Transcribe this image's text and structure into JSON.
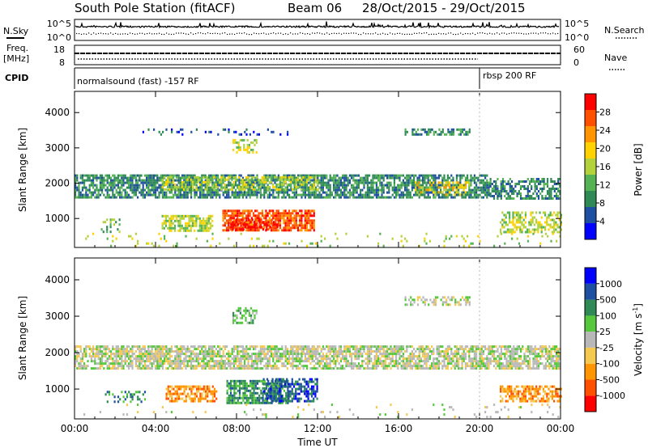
{
  "header": {
    "title": "South Pole Station (fitACF)",
    "beam": "Beam 06",
    "date_range": "28/Oct/2015 - 29/Oct/2015"
  },
  "nsky_panel": {
    "left_label": "N.Sky",
    "right_label": "N.Search",
    "left_ticks": [
      "10^5",
      "10^0"
    ],
    "right_ticks": [
      "10^5",
      "10^0"
    ]
  },
  "freq_panel": {
    "left_label_1": "Freq.",
    "left_label_2": "[MHz]",
    "left_ticks": [
      "18",
      "8"
    ],
    "right_ticks": [
      "60",
      "0"
    ],
    "right_label": "Nave"
  },
  "cpid_panel": {
    "label": "CPID",
    "segments": [
      {
        "name": "normalsound (fast) -157 RF",
        "start_hour": 0,
        "end_hour": 20
      },
      {
        "name": "rbsp 200 RF",
        "start_hour": 20,
        "end_hour": 24
      }
    ]
  },
  "colors": {
    "power_scale": [
      "#0000ff",
      "#1f4fa0",
      "#2f8a55",
      "#55b255",
      "#b4d23c",
      "#ffd200",
      "#ff9600",
      "#ff5000",
      "#ff0000"
    ],
    "velocity_scale": [
      "#ff0000",
      "#ff5000",
      "#ff9600",
      "#f5c850",
      "#b8b8b8",
      "#55c83c",
      "#2f8a55",
      "#1f4fa0",
      "#0000ff"
    ],
    "ground_scatter": "#b8b8b8"
  },
  "chart_data": [
    {
      "type": "heatmap",
      "panel": "power",
      "ylabel": "Slant Range [km]",
      "ylim": [
        180,
        4600
      ],
      "yticks": [
        "1000",
        "2000",
        "3000",
        "4000"
      ],
      "xlim_hours": [
        0,
        24
      ],
      "colorbar": {
        "label": "Power [dB]",
        "ticks": [
          "28",
          "24",
          "20",
          "16",
          "12",
          "8",
          "4"
        ],
        "range": [
          0,
          32
        ]
      },
      "bands": [
        {
          "x0": 0.0,
          "x1": 20.5,
          "y0": 1600,
          "y1": 2250,
          "level": 2,
          "density": 0.75
        },
        {
          "x0": 20.5,
          "x1": 24.0,
          "y0": 1600,
          "y1": 2150,
          "level": 2,
          "density": 0.6
        },
        {
          "x0": 4.3,
          "x1": 12.0,
          "y0": 1800,
          "y1": 2200,
          "level": 4,
          "density": 0.5
        },
        {
          "x0": 16.8,
          "x1": 19.5,
          "y0": 1700,
          "y1": 2050,
          "level": 5,
          "density": 0.4
        },
        {
          "x0": 7.3,
          "x1": 11.8,
          "y0": 650,
          "y1": 1250,
          "level": 7,
          "density": 0.8
        },
        {
          "x0": 7.6,
          "x1": 10.0,
          "y0": 700,
          "y1": 1000,
          "level": 8,
          "density": 0.5
        },
        {
          "x0": 4.3,
          "x1": 6.8,
          "y0": 650,
          "y1": 1100,
          "level": 4,
          "density": 0.65
        },
        {
          "x0": 1.3,
          "x1": 2.2,
          "y0": 650,
          "y1": 1000,
          "level": 3,
          "density": 0.3
        },
        {
          "x0": 7.8,
          "x1": 9.0,
          "y0": 2850,
          "y1": 3250,
          "level": 4,
          "density": 0.45
        },
        {
          "x0": 16.3,
          "x1": 19.5,
          "y0": 3350,
          "y1": 3550,
          "level": 2,
          "density": 0.6
        },
        {
          "x0": 3.0,
          "x1": 10.5,
          "y0": 3400,
          "y1": 3550,
          "level": 1,
          "density": 0.15
        },
        {
          "x0": 21.0,
          "x1": 24.0,
          "y0": 650,
          "y1": 1200,
          "level": 4,
          "density": 0.55
        },
        {
          "x0": 0.0,
          "x1": 24.0,
          "y0": 250,
          "y1": 600,
          "level": 4,
          "density": 0.06
        }
      ]
    },
    {
      "type": "heatmap",
      "panel": "velocity",
      "ylabel": "Slant Range [km]",
      "ylim": [
        180,
        4600
      ],
      "yticks": [
        "1000",
        "2000",
        "3000",
        "4000"
      ],
      "xlim_hours": [
        0,
        24
      ],
      "xlabel": "Time UT",
      "xticks": [
        "00:00",
        "04:00",
        "08:00",
        "12:00",
        "16:00",
        "20:00",
        "00:00"
      ],
      "colorbar": {
        "label": "Velocity [m s",
        "label_exponent": "-1",
        "label_close": "]",
        "ticks": [
          "1000",
          "500",
          "100",
          "25",
          "-25",
          "-100",
          "-500",
          "-1000"
        ]
      },
      "bands": [
        {
          "x0": 0.0,
          "x1": 24.0,
          "y0": 1550,
          "y1": 2200,
          "level": 4,
          "density": 0.75
        },
        {
          "x0": 4.5,
          "x1": 7.0,
          "y0": 650,
          "y1": 1100,
          "level": 2,
          "density": 0.65
        },
        {
          "x0": 7.5,
          "x1": 10.5,
          "y0": 650,
          "y1": 1250,
          "level": 6,
          "density": 0.75
        },
        {
          "x0": 9.3,
          "x1": 12.0,
          "y0": 700,
          "y1": 1300,
          "level": 7,
          "density": 0.55
        },
        {
          "x0": 7.8,
          "x1": 9.0,
          "y0": 2850,
          "y1": 3250,
          "level": 5,
          "density": 0.45
        },
        {
          "x0": 16.3,
          "x1": 19.5,
          "y0": 3350,
          "y1": 3550,
          "level": 4,
          "density": 0.5
        },
        {
          "x0": 21.0,
          "x1": 24.0,
          "y0": 650,
          "y1": 1100,
          "level": 2,
          "density": 0.6
        },
        {
          "x0": 1.5,
          "x1": 3.5,
          "y0": 650,
          "y1": 950,
          "level": 6,
          "density": 0.3
        },
        {
          "x0": 0.0,
          "x1": 24.0,
          "y0": 250,
          "y1": 600,
          "level": 4,
          "density": 0.05
        }
      ]
    }
  ]
}
